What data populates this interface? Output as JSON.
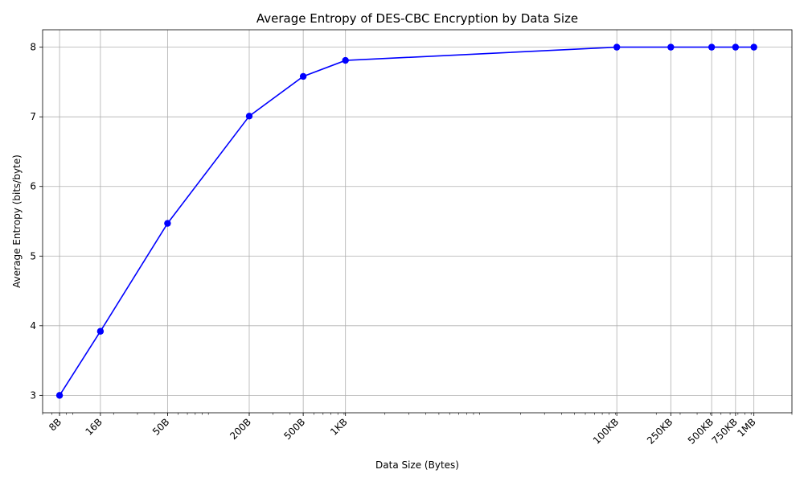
{
  "chart_data": {
    "type": "line",
    "title": "Average Entropy of DES-CBC Encryption by Data Size",
    "xlabel": "Data Size (Bytes)",
    "ylabel": "Average Entropy (bits/byte)",
    "xscale": "log",
    "grid": true,
    "color": "#0000ff",
    "marker": "circle",
    "xlim": [
      6,
      2000000
    ],
    "ylim": [
      2.75,
      8.25
    ],
    "x": [
      8,
      16,
      50,
      200,
      500,
      1024,
      102400,
      256000,
      512000,
      768000,
      1048576
    ],
    "x_tick_labels": [
      "8B",
      "16B",
      "50B",
      "200B",
      "500B",
      "1KB",
      "100KB",
      "250KB",
      "500KB",
      "750KB",
      "1MB"
    ],
    "y": [
      3.0,
      3.92,
      5.47,
      7.01,
      7.58,
      7.81,
      8.0,
      8.0,
      8.0,
      8.0,
      8.0
    ],
    "y_ticks": [
      3,
      4,
      5,
      6,
      7,
      8
    ]
  }
}
